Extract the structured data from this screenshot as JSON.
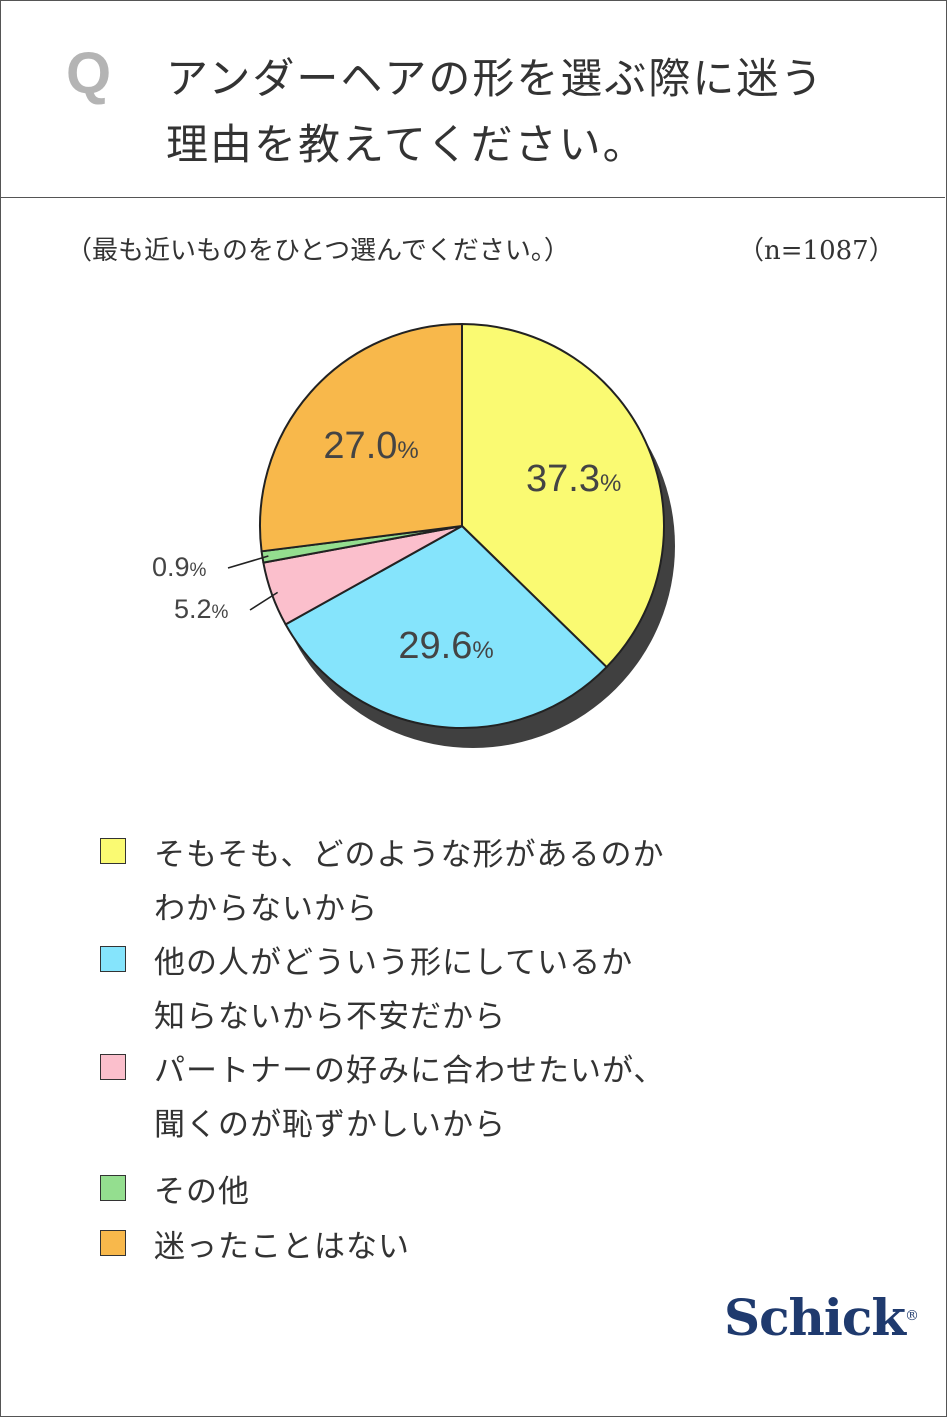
{
  "question": {
    "mark": "Q",
    "lines": [
      "アンダーヘアの形を選ぶ際に迷う",
      "理由を教えてください。"
    ]
  },
  "instruction": "（最も近いものをひとつ選んでください。）",
  "sample_size": "（n=1087）",
  "chart_data": {
    "type": "pie",
    "slices": [
      {
        "label": "そもそも、どのような形があるのかわからないから",
        "value": 37.3,
        "display": "37.3",
        "color": "#fafa72"
      },
      {
        "label": "他の人がどういう形にしているか知らないから不安だから",
        "value": 29.6,
        "display": "29.6",
        "color": "#85e4fc"
      },
      {
        "label": "パートナーの好みに合わせたいが、聞くのが恥ずかしいから",
        "value": 5.2,
        "display": "5.2",
        "color": "#fbbfcc"
      },
      {
        "label": "その他",
        "value": 0.9,
        "display": "0.9",
        "color": "#94de8f"
      },
      {
        "label": "迷ったことはない",
        "value": 27.0,
        "display": "27.0",
        "color": "#f8b84b"
      }
    ],
    "unit": "%",
    "start": "12 o'clock",
    "direction": "clockwise"
  },
  "legend": [
    {
      "lines": [
        "そもそも、どのような形があるのか",
        "わからないから"
      ],
      "color": "#fafa72"
    },
    {
      "lines": [
        "他の人がどういう形にしているか",
        "知らないから不安だから"
      ],
      "color": "#85e4fc"
    },
    {
      "lines": [
        "パートナーの好みに合わせたいが、",
        "聞くのが恥ずかしいから"
      ],
      "color": "#fbbfcc"
    },
    {
      "lines": [
        "その他"
      ],
      "color": "#94de8f"
    },
    {
      "lines": [
        "迷ったことはない"
      ],
      "color": "#f8b84b"
    }
  ],
  "brand": {
    "name": "Schick",
    "mark": "®"
  }
}
